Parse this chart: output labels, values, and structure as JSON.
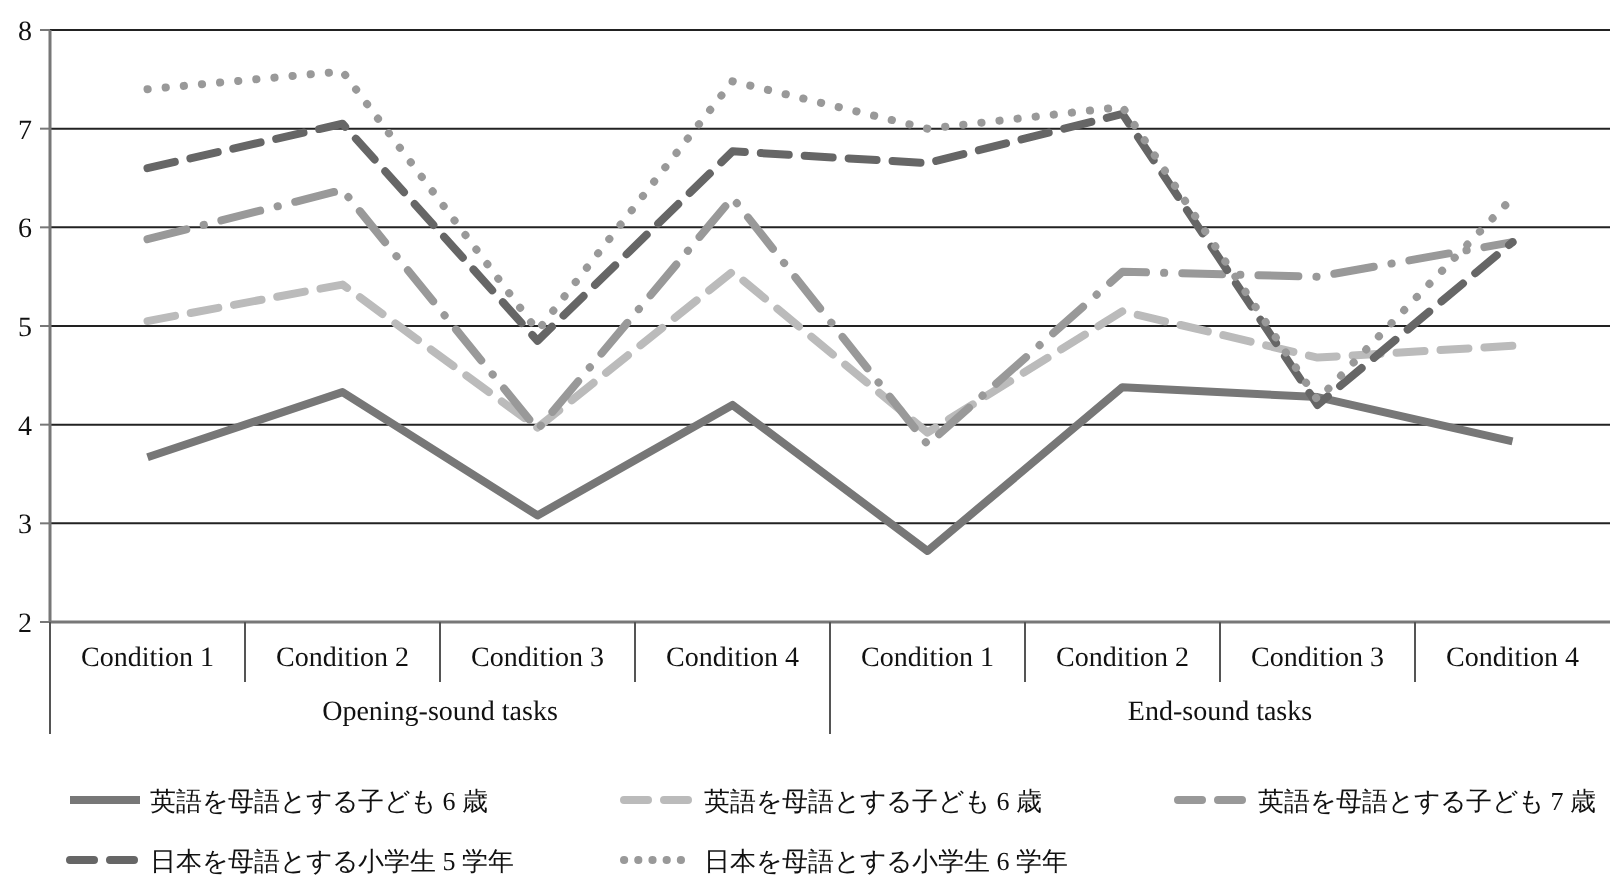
{
  "chart_data": {
    "type": "line",
    "categories": [
      "Condition 1",
      "Condition 2",
      "Condition 3",
      "Condition 4",
      "Condition 1",
      "Condition 2",
      "Condition 3",
      "Condition 4"
    ],
    "annotations": [
      "Opening-sound tasks",
      "End-sound tasks"
    ],
    "series": [
      {
        "name": "英語を母語とする子ども 6 歳",
        "color": "#777777",
        "line_style": "solid",
        "values": [
          3.67,
          4.33,
          3.08,
          4.2,
          2.72,
          4.38,
          4.28,
          3.83
        ]
      },
      {
        "name": "英語を母語とする子ども 6 歳",
        "color": "#bbbbbb",
        "line_style": "dashed",
        "values": [
          5.05,
          5.42,
          3.97,
          5.55,
          3.92,
          5.15,
          4.68,
          4.8
        ]
      },
      {
        "name": "英語を母語とする子ども 7 歳",
        "color": "#999999",
        "line_style": "dashdot",
        "values": [
          5.88,
          6.38,
          3.95,
          6.3,
          3.8,
          5.55,
          5.5,
          5.85
        ]
      },
      {
        "name": "日本を母語とする小学生 5 学年",
        "color": "#666666",
        "line_style": "dashed",
        "values": [
          6.6,
          7.05,
          4.85,
          6.77,
          6.65,
          7.15,
          4.2,
          5.85
        ]
      },
      {
        "name": "日本を母語とする小学生 6 学年",
        "color": "#999999",
        "line_style": "dotted",
        "values": [
          7.4,
          7.58,
          4.95,
          7.48,
          7.0,
          7.22,
          4.25,
          6.3
        ]
      }
    ],
    "ylim": [
      2,
      8
    ],
    "yticks": [
      2,
      3,
      4,
      5,
      6,
      7,
      8
    ],
    "grid": "y",
    "legend": "bottom"
  }
}
